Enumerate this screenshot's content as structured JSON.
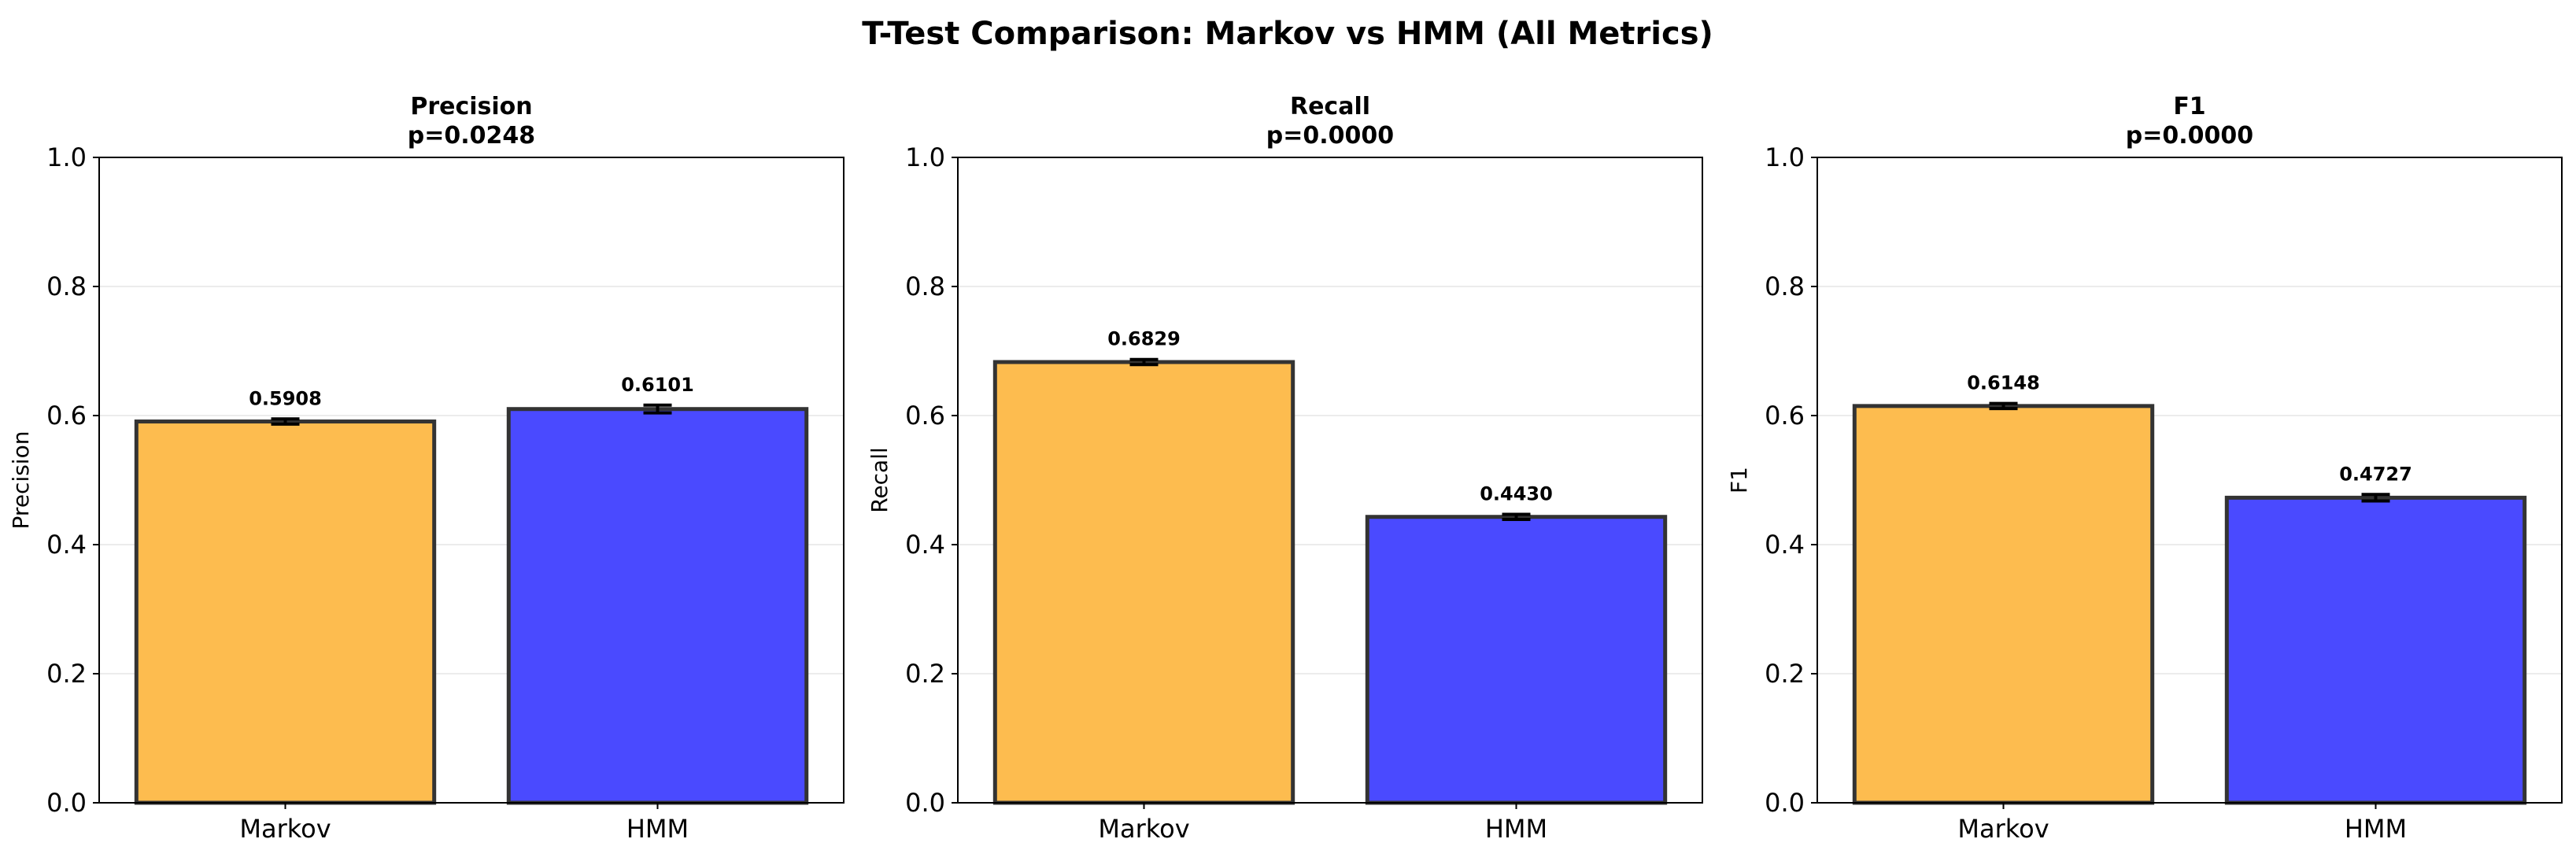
{
  "figure": {
    "title": "T-Test Comparison: Markov vs HMM (All Metrics)"
  },
  "colors": {
    "markov": "#fdbc4f",
    "hmm": "#4a4aff",
    "edge": "#333333",
    "grid": "#e6e6e6",
    "errorbar": "#000000"
  },
  "chart_data": [
    {
      "type": "bar",
      "title": "Precision",
      "subtitle": "p=0.0248",
      "ylabel": "Precision",
      "categories": [
        "Markov",
        "HMM"
      ],
      "values": [
        0.5908,
        0.6101
      ],
      "value_labels": [
        "0.5908",
        "0.6101"
      ],
      "errors": [
        0.004,
        0.006
      ],
      "ylim": [
        0,
        1.0
      ],
      "yticks": [
        "0.0",
        "0.2",
        "0.4",
        "0.6",
        "0.8",
        "1.0"
      ],
      "grid": "y"
    },
    {
      "type": "bar",
      "title": "Recall",
      "subtitle": "p=0.0000",
      "ylabel": "Recall",
      "categories": [
        "Markov",
        "HMM"
      ],
      "values": [
        0.6829,
        0.443
      ],
      "value_labels": [
        "0.6829",
        "0.4430"
      ],
      "errors": [
        0.004,
        0.004
      ],
      "ylim": [
        0,
        1.0
      ],
      "yticks": [
        "0.0",
        "0.2",
        "0.4",
        "0.6",
        "0.8",
        "1.0"
      ],
      "grid": "y"
    },
    {
      "type": "bar",
      "title": "F1",
      "subtitle": "p=0.0000",
      "ylabel": "F1",
      "categories": [
        "Markov",
        "HMM"
      ],
      "values": [
        0.6148,
        0.4727
      ],
      "value_labels": [
        "0.6148",
        "0.4727"
      ],
      "errors": [
        0.004,
        0.005
      ],
      "ylim": [
        0,
        1.0
      ],
      "yticks": [
        "0.0",
        "0.2",
        "0.4",
        "0.6",
        "0.8",
        "1.0"
      ],
      "grid": "y"
    }
  ]
}
